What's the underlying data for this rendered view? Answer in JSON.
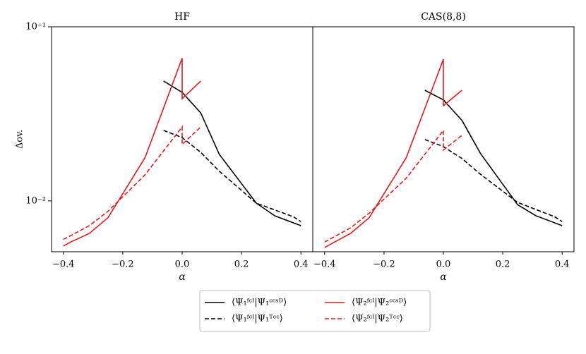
{
  "chart_data": [
    {
      "type": "line",
      "title": "HF",
      "xlabel": "α",
      "ylabel": "Δov.",
      "yscale": "log",
      "xlim": [
        -0.44,
        0.44
      ],
      "ylim": [
        0.0051,
        0.1
      ],
      "xticks": [
        {
          "value": -0.4,
          "label": "−0.4"
        },
        {
          "value": -0.2,
          "label": "−0.2"
        },
        {
          "value": 0,
          "label": "0.0"
        },
        0.2,
        0.4
      ],
      "yticks": [
        {
          "value": 0.1,
          "label": "10⁻¹"
        },
        {
          "value": 0.01,
          "label": "10⁻²"
        }
      ],
      "series": [
        {
          "name": "⟨Ψ₁ᶠᶜᴵ|Ψ₁ᶜᶜˢᴰ⟩",
          "color": "#000000",
          "linestyle": "solid",
          "x": [
            -0.0625,
            0,
            0.0625,
            0.125,
            0.25,
            0.3125,
            0.4
          ],
          "values": [
            0.0488,
            0.042,
            0.032,
            0.0185,
            0.0097,
            0.0082,
            0.0072
          ]
        },
        {
          "name": "⟨Ψ₁ᶠᶜᴵ|Ψ₁ᵀᶜᶜ⟩",
          "color": "#000000",
          "linestyle": "dashed",
          "x": [
            -0.0625,
            0,
            0.0625,
            0.125,
            0.25,
            0.375,
            0.4
          ],
          "values": [
            0.0254,
            0.0231,
            0.019,
            0.0148,
            0.0097,
            0.0081,
            0.0076
          ]
        },
        {
          "name": "⟨Ψ₂ᶠᶜᴵ|Ψ₂ᶜᶜˢᴰ⟩",
          "color": "#e41a1c",
          "linestyle": "solid",
          "x": [
            -0.4,
            -0.375,
            -0.3125,
            -0.25,
            -0.125,
            0,
            0,
            0.0625
          ],
          "values": [
            0.0055,
            0.0058,
            0.0065,
            0.008,
            0.0177,
            0.066,
            0.0386,
            0.0488
          ]
        },
        {
          "name": "⟨Ψ₂ᶠᶜᴵ|Ψ₂ᵀᶜᶜ⟩",
          "color": "#e41a1c",
          "linestyle": "dashed",
          "x": [
            -0.4,
            -0.3125,
            -0.25,
            -0.125,
            0,
            0,
            0.0625
          ],
          "values": [
            0.006,
            0.0072,
            0.0087,
            0.0141,
            0.0266,
            0.0211,
            0.0266
          ]
        }
      ]
    },
    {
      "type": "line",
      "title": "CAS(8,8)",
      "xlabel": "α",
      "yscale": "log",
      "xlim": [
        -0.44,
        0.44
      ],
      "ylim": [
        0.0051,
        0.1
      ],
      "xticks": [
        {
          "value": -0.4,
          "label": "−0.4"
        },
        {
          "value": -0.2,
          "label": "−0.2"
        },
        {
          "value": 0,
          "label": "0.0"
        },
        0.2,
        0.4
      ],
      "series": [
        {
          "color": "#000000",
          "linestyle": "solid",
          "x": [
            -0.0625,
            0,
            0.0625,
            0.125,
            0.25,
            0.3125,
            0.4
          ],
          "values": [
            0.0432,
            0.038,
            0.029,
            0.0187,
            0.0095,
            0.0082,
            0.0072
          ]
        },
        {
          "color": "#000000",
          "linestyle": "dashed",
          "x": [
            -0.0625,
            0,
            0.0625,
            0.125,
            0.25,
            0.375,
            0.4
          ],
          "values": [
            0.0225,
            0.0205,
            0.0175,
            0.0142,
            0.0098,
            0.0081,
            0.0076
          ]
        },
        {
          "color": "#e41a1c",
          "linestyle": "solid",
          "x": [
            -0.4,
            -0.3125,
            -0.25,
            -0.125,
            0,
            0,
            0.0625
          ],
          "values": [
            0.0054,
            0.0065,
            0.008,
            0.0177,
            0.065,
            0.0352,
            0.0432
          ]
        },
        {
          "color": "#e41a1c",
          "linestyle": "dashed",
          "x": [
            -0.4,
            -0.3125,
            -0.25,
            -0.125,
            0,
            0,
            0.0625
          ],
          "values": [
            0.0058,
            0.007,
            0.0085,
            0.0135,
            0.0254,
            0.0196,
            0.0238
          ]
        }
      ]
    }
  ]
}
